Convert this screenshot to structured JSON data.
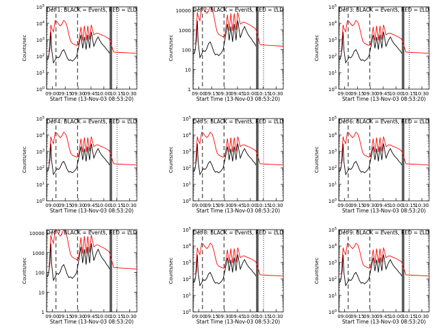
{
  "panels": [
    {
      "title": "Det 1: BLACK = Events, RED = LLD",
      "ylabel": "Counts/sec",
      "ylim": [
        1,
        100000
      ],
      "yticks": [
        {
          "v": 1,
          "t": "10^0"
        },
        {
          "v": 10,
          "t": "10^1"
        },
        {
          "v": 100,
          "t": "10^2"
        },
        {
          "v": 1000,
          "t": "10^3"
        },
        {
          "v": 10000,
          "t": "10^4"
        },
        {
          "v": 100000,
          "t": "10^5"
        }
      ],
      "xticks": [
        "09:00",
        "09:15",
        "09:30",
        "09:45",
        "10:00",
        "10:15",
        "10:30"
      ],
      "xlabel": "Start Time (13-Nov-03 08:53:20)"
    },
    {
      "title": "Det 2: BLACK = Events, RED = LLD",
      "ylabel": "Counts/sec",
      "ylim": [
        1,
        15000
      ],
      "yticks": [
        {
          "v": 1,
          "t": "1"
        },
        {
          "v": 10,
          "t": "10"
        },
        {
          "v": 100,
          "t": "100"
        },
        {
          "v": 1000,
          "t": "1000"
        },
        {
          "v": 10000,
          "t": "10000"
        }
      ],
      "xticks": [
        "09:00",
        "09:15",
        "09:30",
        "09:45",
        "10:00",
        "10:15",
        "10:30"
      ],
      "xlabel": "Start Time (13-Nov-03 08:53:20)"
    },
    {
      "title": "Det 3: BLACK = Events, RED = LLD",
      "ylabel": "Counts/sec",
      "ylim": [
        1,
        100000
      ],
      "yticks": [
        {
          "v": 1,
          "t": "10^0"
        },
        {
          "v": 10,
          "t": "10^1"
        },
        {
          "v": 100,
          "t": "10^2"
        },
        {
          "v": 1000,
          "t": "10^3"
        },
        {
          "v": 10000,
          "t": "10^4"
        },
        {
          "v": 100000,
          "t": "10^5"
        }
      ],
      "xticks": [
        "09:00",
        "09:15",
        "09:30",
        "09:45",
        "10:00",
        "10:15",
        "10:30"
      ],
      "xlabel": "Start Time (13-Nov-03 08:53:20)"
    },
    {
      "title": "Det 4: BLACK = Events, RED = LLD",
      "ylabel": "Counts/sec",
      "ylim": [
        1,
        100000
      ],
      "yticks": [
        {
          "v": 1,
          "t": "10^0"
        },
        {
          "v": 10,
          "t": "10^1"
        },
        {
          "v": 100,
          "t": "10^2"
        },
        {
          "v": 1000,
          "t": "10^3"
        },
        {
          "v": 10000,
          "t": "10^4"
        },
        {
          "v": 100000,
          "t": "10^5"
        }
      ],
      "xticks": [
        "09:00",
        "09:15",
        "09:30",
        "09:45",
        "10:00",
        "10:15",
        "10:30"
      ],
      "xlabel": "Start Time (13-Nov-03 08:53:20)"
    },
    {
      "title": "Det 5: BLACK = Events, RED = LLD",
      "ylabel": "Counts/sec",
      "ylim": [
        1,
        100000
      ],
      "yticks": [
        {
          "v": 1,
          "t": "10^0"
        },
        {
          "v": 10,
          "t": "10^1"
        },
        {
          "v": 100,
          "t": "10^2"
        },
        {
          "v": 1000,
          "t": "10^3"
        },
        {
          "v": 10000,
          "t": "10^4"
        },
        {
          "v": 100000,
          "t": "10^5"
        }
      ],
      "xticks": [
        "09:00",
        "09:15",
        "09:30",
        "09:45",
        "10:00",
        "10:15",
        "10:30"
      ],
      "xlabel": "Start Time (13-Nov-03 08:53:20)"
    },
    {
      "title": "Det 6: BLACK = Events, RED = LLD",
      "ylabel": "Counts/sec",
      "ylim": [
        1,
        100000
      ],
      "yticks": [
        {
          "v": 1,
          "t": "10^0"
        },
        {
          "v": 10,
          "t": "10^1"
        },
        {
          "v": 100,
          "t": "10^2"
        },
        {
          "v": 1000,
          "t": "10^3"
        },
        {
          "v": 10000,
          "t": "10^4"
        },
        {
          "v": 100000,
          "t": "10^5"
        }
      ],
      "xticks": [
        "09:00",
        "09:15",
        "09:30",
        "09:45",
        "10:00",
        "10:15",
        "10:30"
      ],
      "xlabel": "Start Time (13-Nov-03 08:53:20)"
    },
    {
      "title": "Det 7: BLACK = Events, RED = LLD",
      "ylabel": "Counts/sec",
      "ylim": [
        1,
        15000
      ],
      "yticks": [
        {
          "v": 1,
          "t": "1"
        },
        {
          "v": 10,
          "t": "10"
        },
        {
          "v": 100,
          "t": "100"
        },
        {
          "v": 1000,
          "t": "1000"
        },
        {
          "v": 10000,
          "t": "10000"
        }
      ],
      "xticks": [
        "09:00",
        "09:15",
        "09:30",
        "09:45",
        "10:00",
        "10:15",
        "10:30"
      ],
      "xlabel": "Start Time (13-Nov-03 08:53:20)"
    },
    {
      "title": "Det 8: BLACK = Events, RED = LLD",
      "ylabel": "Counts/sec",
      "ylim": [
        1,
        100000
      ],
      "yticks": [
        {
          "v": 1,
          "t": "10^0"
        },
        {
          "v": 10,
          "t": "10^1"
        },
        {
          "v": 100,
          "t": "10^2"
        },
        {
          "v": 1000,
          "t": "10^3"
        },
        {
          "v": 10000,
          "t": "10^4"
        },
        {
          "v": 100000,
          "t": "10^5"
        }
      ],
      "xticks": [
        "09:00",
        "09:15",
        "09:30",
        "09:45",
        "10:00",
        "10:15",
        "10:30"
      ],
      "xlabel": "Start Time (13-Nov-03 08:53:20)"
    },
    {
      "title": "Det 9: BLACK = Events, RED = LLD",
      "ylabel": "Counts/sec",
      "ylim": [
        1,
        100000
      ],
      "yticks": [
        {
          "v": 1,
          "t": "10^0"
        },
        {
          "v": 10,
          "t": "10^1"
        },
        {
          "v": 100,
          "t": "10^2"
        },
        {
          "v": 1000,
          "t": "10^3"
        },
        {
          "v": 10000,
          "t": "10^4"
        },
        {
          "v": 100000,
          "t": "10^5"
        }
      ],
      "xticks": [
        "09:00",
        "09:15",
        "09:30",
        "09:45",
        "10:00",
        "10:15",
        "10:30"
      ],
      "xlabel": "Start Time (13-Nov-03 08:53:20)"
    }
  ],
  "chart_data": {
    "type": "line",
    "grid": false,
    "y_scale": "log",
    "x_unit": "minutes since 08:53:20",
    "xlim": [
      0,
      105
    ],
    "colors": {
      "events": "#000000",
      "lld": "#ff0000"
    },
    "series": [
      {
        "name": "BLACK = Events",
        "x": [
          0,
          2,
          4,
          5,
          6,
          8,
          10,
          12,
          14,
          16,
          18,
          20,
          22,
          24,
          26,
          28,
          30,
          33,
          35,
          37,
          40,
          42,
          44,
          46,
          48,
          50,
          52,
          55,
          58,
          60,
          62,
          64,
          66,
          68,
          70,
          72,
          73
        ],
        "values": [
          60,
          70,
          300,
          3000,
          250,
          40,
          60,
          90,
          80,
          110,
          200,
          250,
          150,
          80,
          55,
          60,
          50,
          70,
          100,
          300,
          2000,
          300,
          1500,
          250,
          2000,
          300,
          3000,
          400,
          1000,
          1500,
          900,
          600,
          450,
          350,
          250,
          200,
          150
        ]
      },
      {
        "name": "RED = LLD",
        "x": [
          0,
          3,
          5,
          6,
          8,
          10,
          12,
          14,
          16,
          18,
          20,
          22,
          24,
          26,
          28,
          30,
          33,
          35,
          37,
          40,
          42,
          44,
          46,
          48,
          50,
          52,
          55,
          58,
          60,
          62,
          64,
          66,
          68,
          70,
          72,
          73,
          78,
          85,
          95,
          105
        ],
        "values": [
          200,
          200,
          8000,
          5000,
          3000,
          15000,
          13000,
          9000,
          7000,
          9000,
          15000,
          12000,
          6000,
          2000,
          800,
          600,
          500,
          450,
          500,
          6000,
          900,
          7000,
          900,
          7000,
          1000,
          8000,
          2000,
          2500,
          2500,
          2200,
          2000,
          1800,
          1600,
          1400,
          1200,
          1100,
          180,
          170,
          160,
          150
        ]
      }
    ],
    "markers": {
      "solid_vertical_x": [
        0,
        74,
        75.5
      ],
      "dashed_vertical_x": [
        11,
        36
      ],
      "dotted_vertical_x": [
        82
      ]
    }
  }
}
